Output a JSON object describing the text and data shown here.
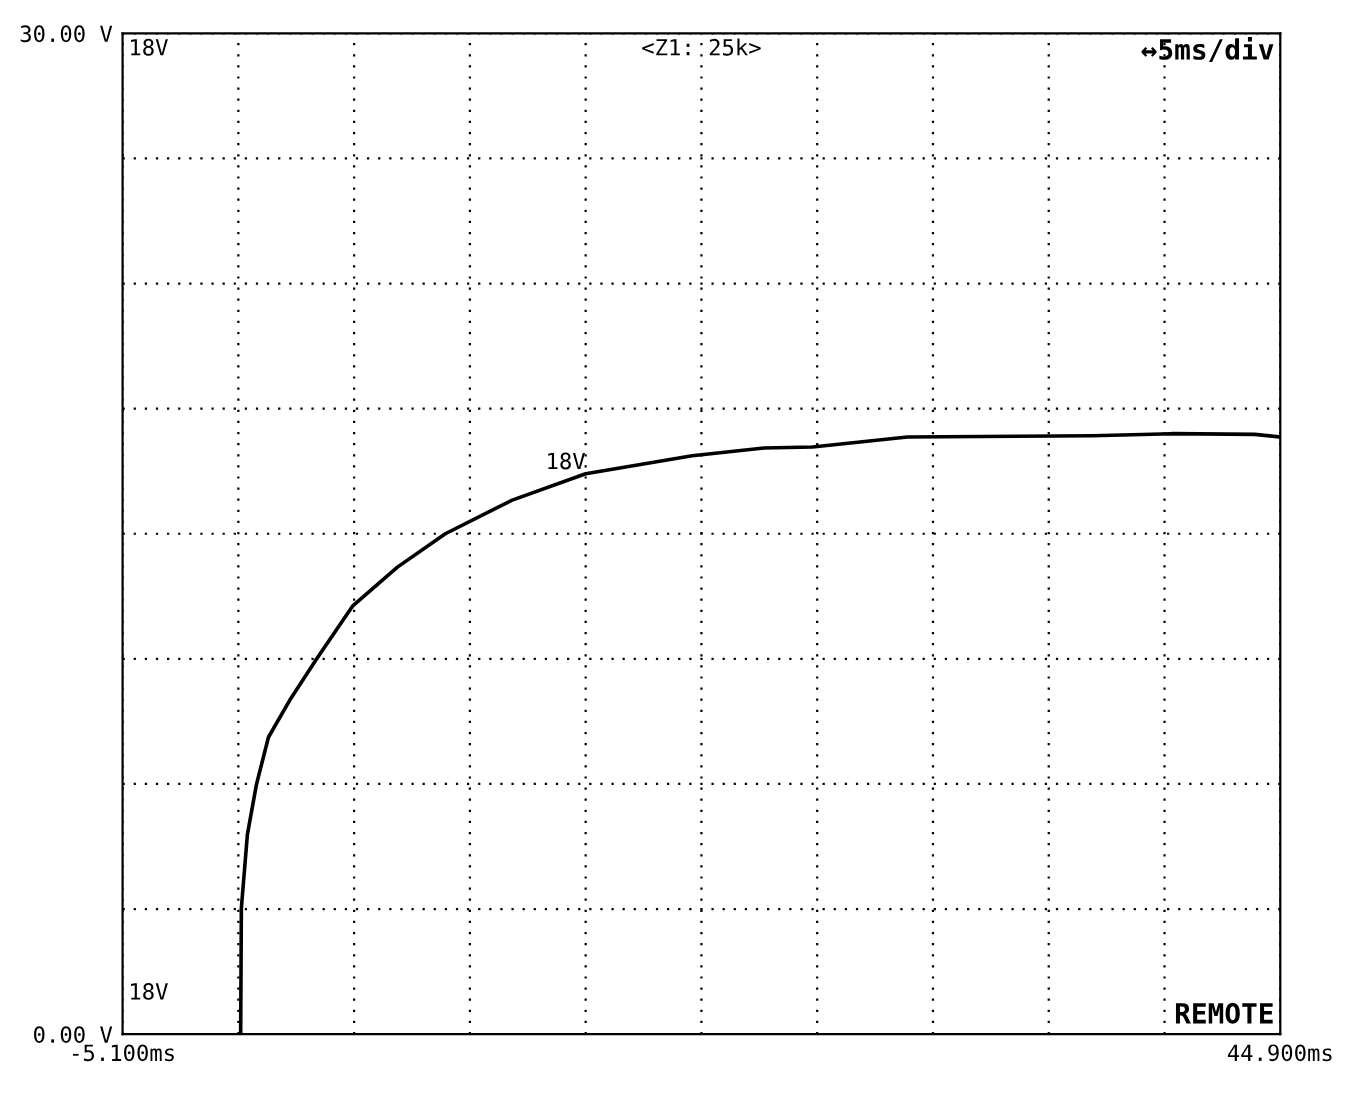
{
  "chart_data": {
    "type": "line",
    "x": [
      0,
      0.03,
      0.29,
      0.68,
      1.2,
      2.11,
      3.27,
      4.83,
      6.77,
      8.84,
      11.7,
      14.9,
      19.5,
      22.6,
      24.7,
      28.8,
      36.8,
      40.2,
      43.8,
      44.9
    ],
    "series": [
      {
        "name": "18V",
        "color": "#000000",
        "values": [
          0,
          3.78,
          5.98,
          7.48,
          8.9,
          10.0,
          11.24,
          12.83,
          14.0,
          15.0,
          16.0,
          16.8,
          17.34,
          17.57,
          17.6,
          17.9,
          17.94,
          18.0,
          17.98,
          17.9
        ]
      }
    ],
    "xlim": [
      -5.1,
      44.9
    ],
    "xticks": [
      {
        "value": -5.1,
        "label": "-5.100ms"
      },
      {
        "value": -0.1,
        "label": null
      },
      {
        "value": 4.9,
        "label": null
      },
      {
        "value": 9.9,
        "label": null
      },
      {
        "value": 14.9,
        "label": null
      },
      {
        "value": 19.9,
        "label": null
      },
      {
        "value": 24.9,
        "label": null
      },
      {
        "value": 29.9,
        "label": null
      },
      {
        "value": 34.9,
        "label": null
      },
      {
        "value": 39.9,
        "label": null
      },
      {
        "value": 44.9,
        "label": "44.900ms"
      }
    ],
    "ylim": [
      0,
      30
    ],
    "yticks": [
      {
        "value": 0,
        "label": "0.00 V"
      },
      {
        "value": 3.75,
        "label": null
      },
      {
        "value": 7.5,
        "label": null
      },
      {
        "value": 11.25,
        "label": null
      },
      {
        "value": 15,
        "label": null
      },
      {
        "value": 18.75,
        "label": null
      },
      {
        "value": 22.5,
        "label": null
      },
      {
        "value": 26.25,
        "label": null
      },
      {
        "value": 30,
        "label": "30.00 V"
      }
    ],
    "grid": true,
    "annotations": [
      "18V",
      "<Z1: 25k>",
      "↔5ms/div",
      "18V",
      "REMOTE"
    ],
    "legend": false,
    "marker": "none"
  }
}
